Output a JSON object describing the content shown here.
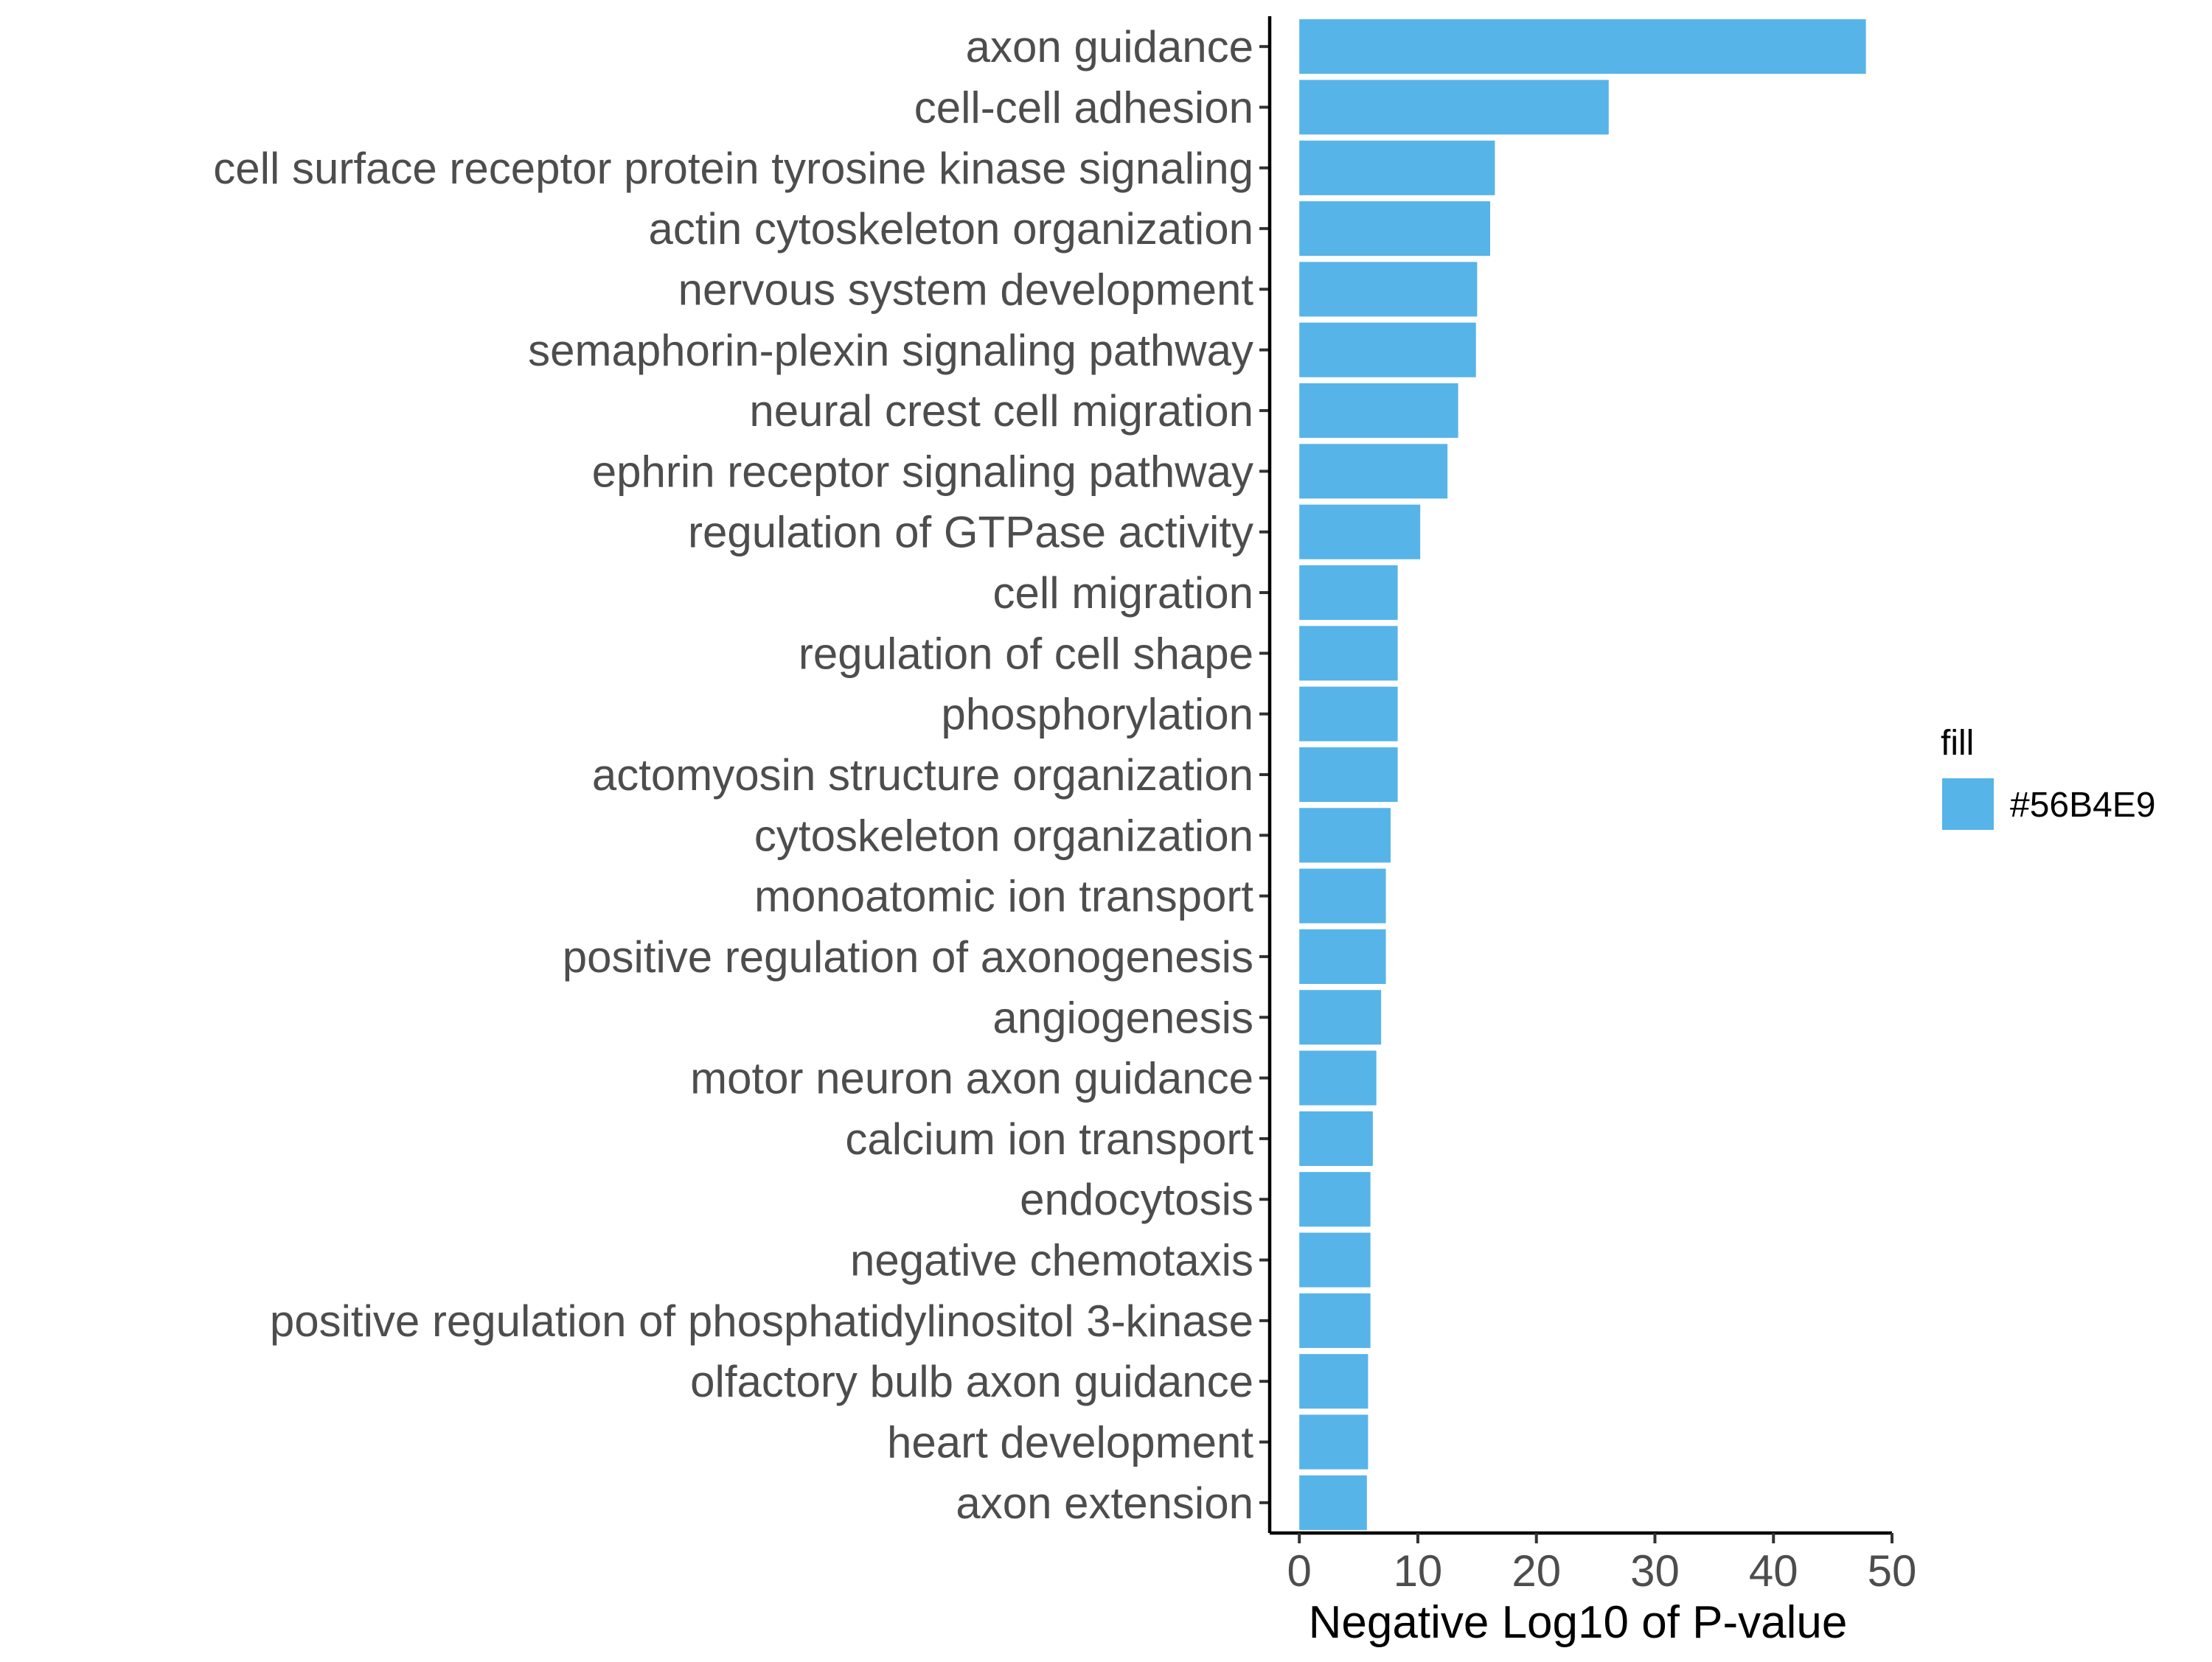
{
  "chart_data": {
    "type": "bar",
    "orientation": "horizontal",
    "categories": [
      "axon guidance",
      "cell-cell adhesion",
      "cell surface receptor protein tyrosine kinase signaling",
      "actin cytoskeleton organization",
      "nervous system development",
      "semaphorin-plexin signaling pathway",
      "neural crest cell migration",
      "ephrin receptor signaling pathway",
      "regulation of GTPase activity",
      "cell migration",
      "regulation of cell shape",
      "phosphorylation",
      "actomyosin structure organization",
      "cytoskeleton organization",
      "monoatomic ion transport",
      "positive regulation of axonogenesis",
      "angiogenesis",
      "motor neuron axon guidance",
      "calcium ion transport",
      "endocytosis",
      "negative chemotaxis",
      "positive regulation of phosphatidylinositol 3-kinase",
      "olfactory bulb axon guidance",
      "heart development",
      "axon extension"
    ],
    "values": [
      47.8,
      26.1,
      16.5,
      16.1,
      15.0,
      14.9,
      13.4,
      12.5,
      10.2,
      8.3,
      8.3,
      8.3,
      8.3,
      7.7,
      7.3,
      7.3,
      6.9,
      6.5,
      6.2,
      6.0,
      6.0,
      6.0,
      5.8,
      5.8,
      5.7
    ],
    "title": "",
    "xlabel": "Negative Log10 of P-value",
    "ylabel": "",
    "xlim": [
      -2.5,
      50
    ],
    "xticks": [
      0,
      10,
      20,
      30,
      40,
      50
    ],
    "grid": false,
    "legend": {
      "title": "fill",
      "placement": "right",
      "entries": [
        {
          "label": "#56B4E9",
          "color": "#56B4E9"
        }
      ]
    },
    "bar_color": "#56B4E9"
  }
}
